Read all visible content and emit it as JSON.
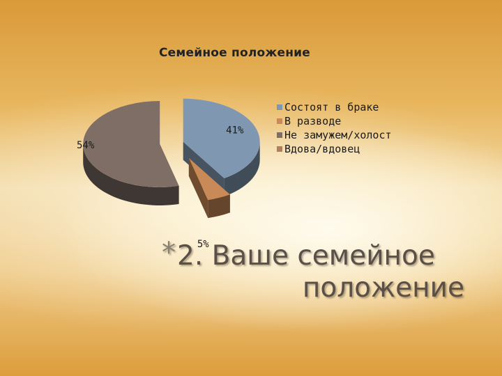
{
  "slide": {
    "heading_bullet": "*",
    "heading_line1": "2. Ваше семейное",
    "heading_line2": "положение"
  },
  "chart_data": {
    "type": "pie",
    "title": "Семейное положение",
    "style": "3d-exploded",
    "legend_position": "right",
    "categories": [
      "Состоят в браке",
      "В разводе",
      "Не замужем/холост",
      "Вдова/вдовец"
    ],
    "values": [
      41,
      5,
      54,
      0
    ],
    "data_labels": [
      "41%",
      "5%",
      "54%",
      ""
    ],
    "colors": [
      "#7f97b0",
      "#c98a57",
      "#7e6e66",
      "#b07f5e"
    ]
  }
}
